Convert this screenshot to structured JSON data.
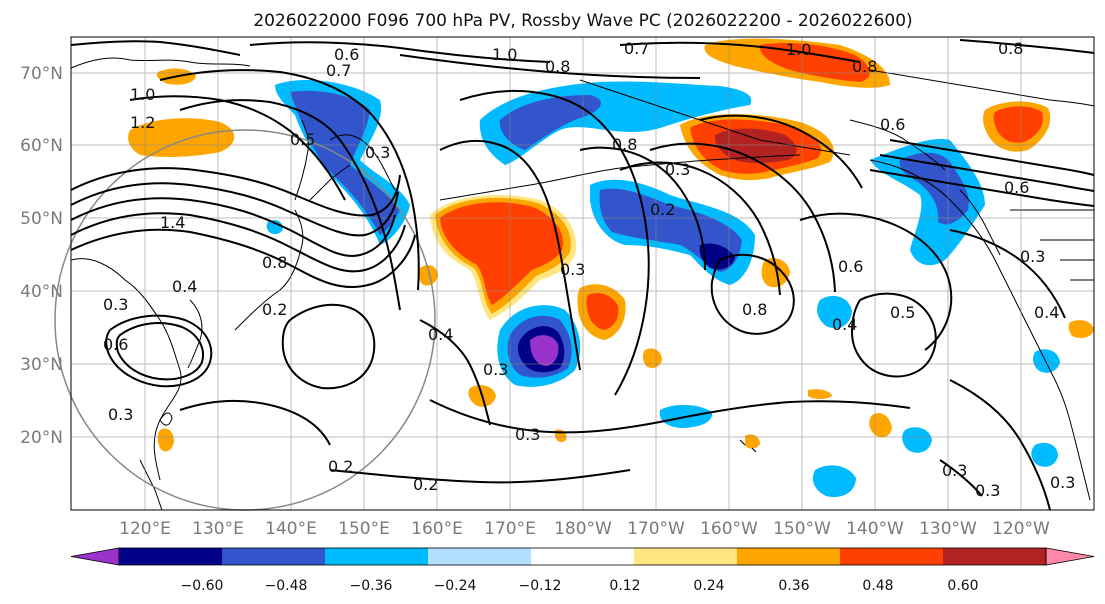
{
  "title": "2026022000 F096 700 hPa PV, Rossby Wave PC (2026022200 - 2026022600)",
  "latitude_labels": [
    "70°N",
    "60°N",
    "50°N",
    "40°N",
    "30°N",
    "20°N"
  ],
  "longitude_labels": [
    "120°E",
    "130°E",
    "140°E",
    "150°E",
    "160°E",
    "170°E",
    "180°W",
    "170°W",
    "160°W",
    "150°W",
    "140°W",
    "130°W",
    "120°W"
  ],
  "contour_labels": [
    "0.6",
    "0.7",
    "1.0",
    "0.7",
    "0.8",
    "0.8",
    "1.0",
    "0.8",
    "1.0",
    "1.2",
    "1.4",
    "0.5",
    "0.3",
    "0.8",
    "0.4",
    "0.2",
    "0.3",
    "0.6",
    "0.4",
    "0.3",
    "0.8",
    "0.3",
    "0.2",
    "0.3",
    "0.2",
    "0.6",
    "0.8",
    "0.4",
    "0.5",
    "0.6",
    "0.6",
    "0.3",
    "0.4",
    "0.2",
    "0.3",
    "0.3",
    "0.3",
    "0.3",
    "0.3"
  ],
  "colorbar": {
    "ticks": [
      "−0.60",
      "−0.48",
      "−0.36",
      "−0.24",
      "−0.12",
      "0.12",
      "0.24",
      "0.36",
      "0.48",
      "0.60"
    ],
    "colors": [
      "#9933cc",
      "#000088",
      "#3355cc",
      "#00bbff",
      "#b3e0ff",
      "#ffffff",
      "#ffe680",
      "#ffa500",
      "#ff4000",
      "#b22222",
      "#ff88aa"
    ]
  },
  "colors": {
    "strong_negative": "#000088",
    "negative": "#3355cc",
    "weak_negative": "#00bbff",
    "positive": "#ffa500",
    "strong_positive": "#ff4000",
    "extreme_positive": "#b22222"
  }
}
